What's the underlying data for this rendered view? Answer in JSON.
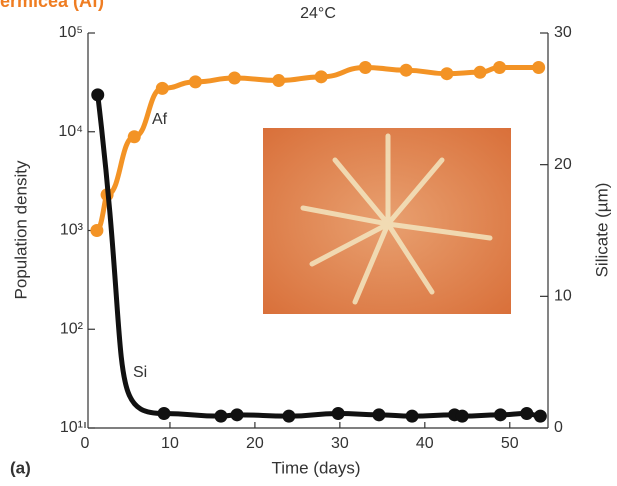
{
  "chart_data": {
    "type": "line",
    "title": "ermicea (Af)",
    "subtitle": "24°C",
    "panel_label": "(a)",
    "xlabel": "Time (days)",
    "ylabel": "Population density",
    "y2label": "Silicate (µm)",
    "annotations": [
      "Af",
      "Si"
    ],
    "xlim": [
      0,
      54.5
    ],
    "xticks": [
      0,
      10,
      20,
      30,
      40,
      50
    ],
    "ylog": true,
    "ylim": [
      10,
      100000
    ],
    "yticks": [
      {
        "value": 10,
        "label": "10¹"
      },
      {
        "value": 100,
        "label": "10²"
      },
      {
        "value": 1000,
        "label": "10³"
      },
      {
        "value": 10000,
        "label": "10⁴"
      },
      {
        "value": 100000,
        "label": "10⁵"
      }
    ],
    "y2lim": [
      0,
      30
    ],
    "y2ticks": [
      0,
      10,
      20,
      30
    ],
    "series": [
      {
        "name": "Af",
        "color": "#f39325",
        "axis": "y",
        "x": [
          1.4,
          2.6,
          5.8,
          9.1,
          13,
          17.6,
          22.8,
          27.8,
          33,
          37.8,
          42.6,
          46.5,
          48.8,
          53.4
        ],
        "values": [
          1000,
          2300,
          8900,
          27500,
          32000,
          35000,
          33000,
          36000,
          44700,
          42000,
          38700,
          40000,
          44700,
          44700
        ]
      },
      {
        "name": "Si",
        "color": "#111111",
        "axis": "y2",
        "x": [
          1.5,
          9.3,
          16,
          17.9,
          24,
          29.8,
          34.6,
          38.5,
          43.5,
          44.4,
          48.9,
          52,
          53.6
        ],
        "values": [
          25.3,
          1.1,
          0.9,
          1.0,
          0.9,
          1.1,
          1.0,
          0.9,
          1.0,
          0.9,
          1.0,
          1.1,
          0.9
        ]
      }
    ]
  }
}
